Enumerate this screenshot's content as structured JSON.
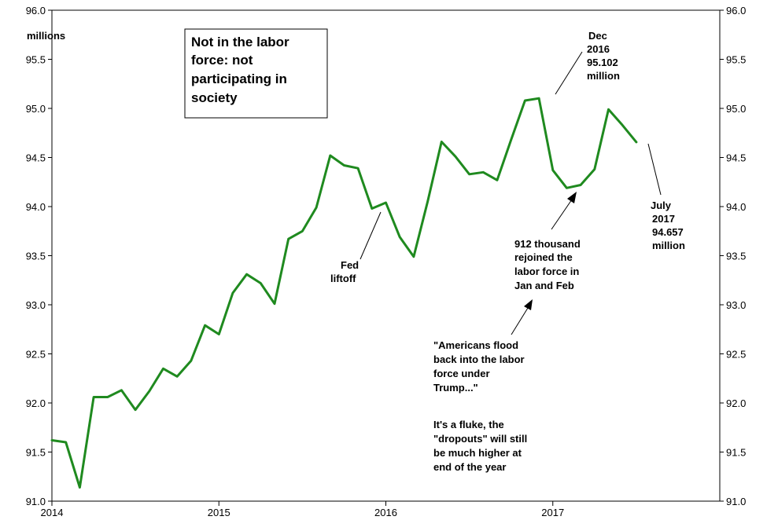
{
  "chart_data": {
    "type": "line",
    "ylabel": "millions",
    "ylim": [
      91.0,
      96.0
    ],
    "y_ticks": [
      "91.0",
      "91.5",
      "92.0",
      "92.5",
      "93.0",
      "93.5",
      "94.0",
      "94.5",
      "95.0",
      "95.5",
      "96.0"
    ],
    "x_ticks": [
      "2014",
      "2015",
      "2016",
      "2017"
    ],
    "xlim": [
      "2014-01",
      "2018-01"
    ],
    "grid": false,
    "series": [
      {
        "color": "#1f8a1f",
        "x": [
          "2014-01",
          "2014-02",
          "2014-03",
          "2014-04",
          "2014-05",
          "2014-06",
          "2014-07",
          "2014-08",
          "2014-09",
          "2014-10",
          "2014-11",
          "2014-12",
          "2015-01",
          "2015-02",
          "2015-03",
          "2015-04",
          "2015-05",
          "2015-06",
          "2015-07",
          "2015-08",
          "2015-09",
          "2015-10",
          "2015-11",
          "2015-12",
          "2016-01",
          "2016-02",
          "2016-03",
          "2016-04",
          "2016-05",
          "2016-06",
          "2016-07",
          "2016-08",
          "2016-09",
          "2016-10",
          "2016-11",
          "2016-12",
          "2017-01",
          "2017-02",
          "2017-03",
          "2017-04",
          "2017-05",
          "2017-06",
          "2017-07"
        ],
        "values": [
          91.62,
          91.6,
          91.14,
          92.06,
          92.06,
          92.13,
          91.93,
          92.12,
          92.35,
          92.27,
          92.43,
          92.79,
          92.7,
          93.12,
          93.31,
          93.22,
          93.01,
          93.67,
          93.75,
          93.99,
          94.52,
          94.42,
          94.39,
          93.98,
          94.04,
          93.69,
          93.49,
          94.05,
          94.66,
          94.51,
          94.33,
          94.35,
          94.27,
          94.68,
          95.08,
          95.102,
          94.37,
          94.19,
          94.22,
          94.38,
          94.99,
          94.83,
          94.657
        ]
      }
    ],
    "title_box": "Not in the labor force: not participating in society",
    "title_lines": [
      "Not in the labor",
      "force: not",
      "participating in",
      "society"
    ],
    "annotations": {
      "fed": {
        "lines": [
          "Fed",
          "liftoff"
        ]
      },
      "dec2016": {
        "lines": [
          "Dec",
          "2016",
          "95.102",
          "million"
        ]
      },
      "july2017": {
        "lines": [
          "July",
          "2017",
          "94.657",
          "million"
        ]
      },
      "rejoined": {
        "lines": [
          "912 thousand",
          "rejoined the",
          "labor force in",
          "Jan and Feb"
        ]
      },
      "quote": {
        "lines": [
          "\"Americans flood",
          "back into the labor",
          "force under",
          "Trump...\"",
          "",
          "It's a fluke, the",
          "\"dropouts\" will still",
          "be much higher at",
          "end of the year"
        ]
      }
    }
  }
}
